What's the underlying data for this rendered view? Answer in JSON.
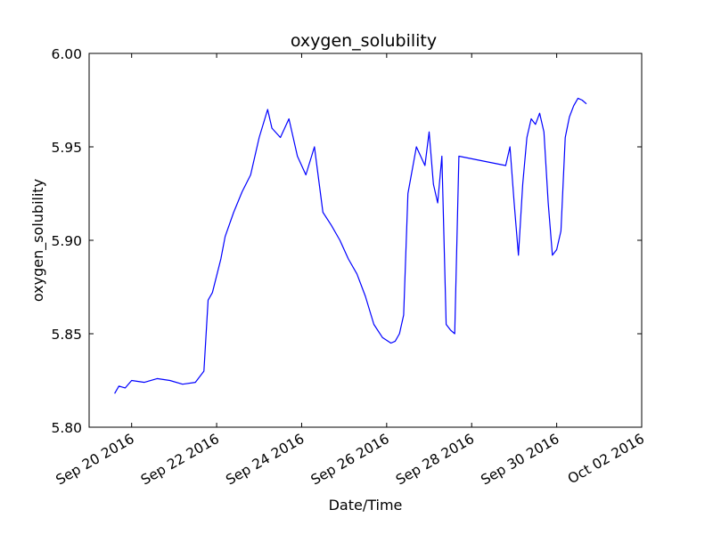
{
  "chart_data": {
    "type": "line",
    "title": "oxygen_solubility",
    "xlabel": "Date/Time",
    "ylabel": "oxygen_solubility",
    "xlim": [
      "2016-09-19T00:00",
      "2016-10-02T00:00"
    ],
    "ylim": [
      5.8,
      6.0
    ],
    "x_ticks": [
      "2016-09-20",
      "2016-09-22",
      "2016-09-24",
      "2016-09-26",
      "2016-09-28",
      "2016-09-30",
      "2016-10-02"
    ],
    "x_tick_labels": [
      "Sep 20 2016",
      "Sep 22 2016",
      "Sep 24 2016",
      "Sep 26 2016",
      "Sep 28 2016",
      "Sep 30 2016",
      "Oct 02 2016"
    ],
    "y_ticks": [
      5.8,
      5.85,
      5.9,
      5.95,
      6.0
    ],
    "y_tick_labels": [
      "5.80",
      "5.85",
      "5.90",
      "5.95",
      "6.00"
    ],
    "grid": false,
    "legend": "none",
    "series": [
      {
        "color": "#0000ff",
        "x": [
          "2016-09-19T14:24",
          "2016-09-19T16:48",
          "2016-09-19T20:24",
          "2016-09-20T00:00",
          "2016-09-20T07:12",
          "2016-09-20T14:24",
          "2016-09-20T21:36",
          "2016-09-21T04:48",
          "2016-09-21T12:00",
          "2016-09-21T16:48",
          "2016-09-21T19:12",
          "2016-09-21T21:36",
          "2016-09-22T02:24",
          "2016-09-22T04:48",
          "2016-09-22T09:36",
          "2016-09-22T14:24",
          "2016-09-22T19:12",
          "2016-09-23T00:00",
          "2016-09-23T04:48",
          "2016-09-23T07:12",
          "2016-09-23T12:00",
          "2016-09-23T16:48",
          "2016-09-23T21:36",
          "2016-09-24T02:24",
          "2016-09-24T07:12",
          "2016-09-24T12:00",
          "2016-09-24T16:48",
          "2016-09-24T21:36",
          "2016-09-25T02:24",
          "2016-09-25T07:12",
          "2016-09-25T12:00",
          "2016-09-25T16:48",
          "2016-09-25T21:36",
          "2016-09-26T02:24",
          "2016-09-26T04:48",
          "2016-09-26T07:12",
          "2016-09-26T09:36",
          "2016-09-26T12:00",
          "2016-09-26T16:48",
          "2016-09-26T21:36",
          "2016-09-27T00:00",
          "2016-09-27T02:24",
          "2016-09-27T04:48",
          "2016-09-27T07:12",
          "2016-09-27T09:36",
          "2016-09-27T12:00",
          "2016-09-27T14:24",
          "2016-09-27T16:48",
          "2016-09-28T19:12",
          "2016-09-28T21:36",
          "2016-09-29T00:00",
          "2016-09-29T02:24",
          "2016-09-29T04:48",
          "2016-09-29T07:12",
          "2016-09-29T09:36",
          "2016-09-29T12:00",
          "2016-09-29T14:24",
          "2016-09-29T16:48",
          "2016-09-29T19:12",
          "2016-09-29T21:36",
          "2016-09-30T00:00",
          "2016-09-30T02:24",
          "2016-09-30T04:48",
          "2016-09-30T07:12",
          "2016-09-30T09:36",
          "2016-09-30T12:00",
          "2016-09-30T14:24",
          "2016-09-30T16:48"
        ],
        "y": [
          5.818,
          5.822,
          5.821,
          5.825,
          5.824,
          5.826,
          5.825,
          5.823,
          5.824,
          5.83,
          5.868,
          5.872,
          5.89,
          5.902,
          5.915,
          5.926,
          5.935,
          5.955,
          5.97,
          5.96,
          5.955,
          5.965,
          5.945,
          5.935,
          5.95,
          5.915,
          5.908,
          5.9,
          5.89,
          5.882,
          5.87,
          5.855,
          5.848,
          5.845,
          5.846,
          5.85,
          5.86,
          5.925,
          5.95,
          5.94,
          5.958,
          5.93,
          5.92,
          5.945,
          5.855,
          5.852,
          5.85,
          5.945,
          5.94,
          5.95,
          5.92,
          5.892,
          5.93,
          5.955,
          5.965,
          5.962,
          5.968,
          5.958,
          5.92,
          5.892,
          5.895,
          5.905,
          5.955,
          5.966,
          5.972,
          5.976,
          5.975,
          5.973
        ]
      }
    ]
  }
}
